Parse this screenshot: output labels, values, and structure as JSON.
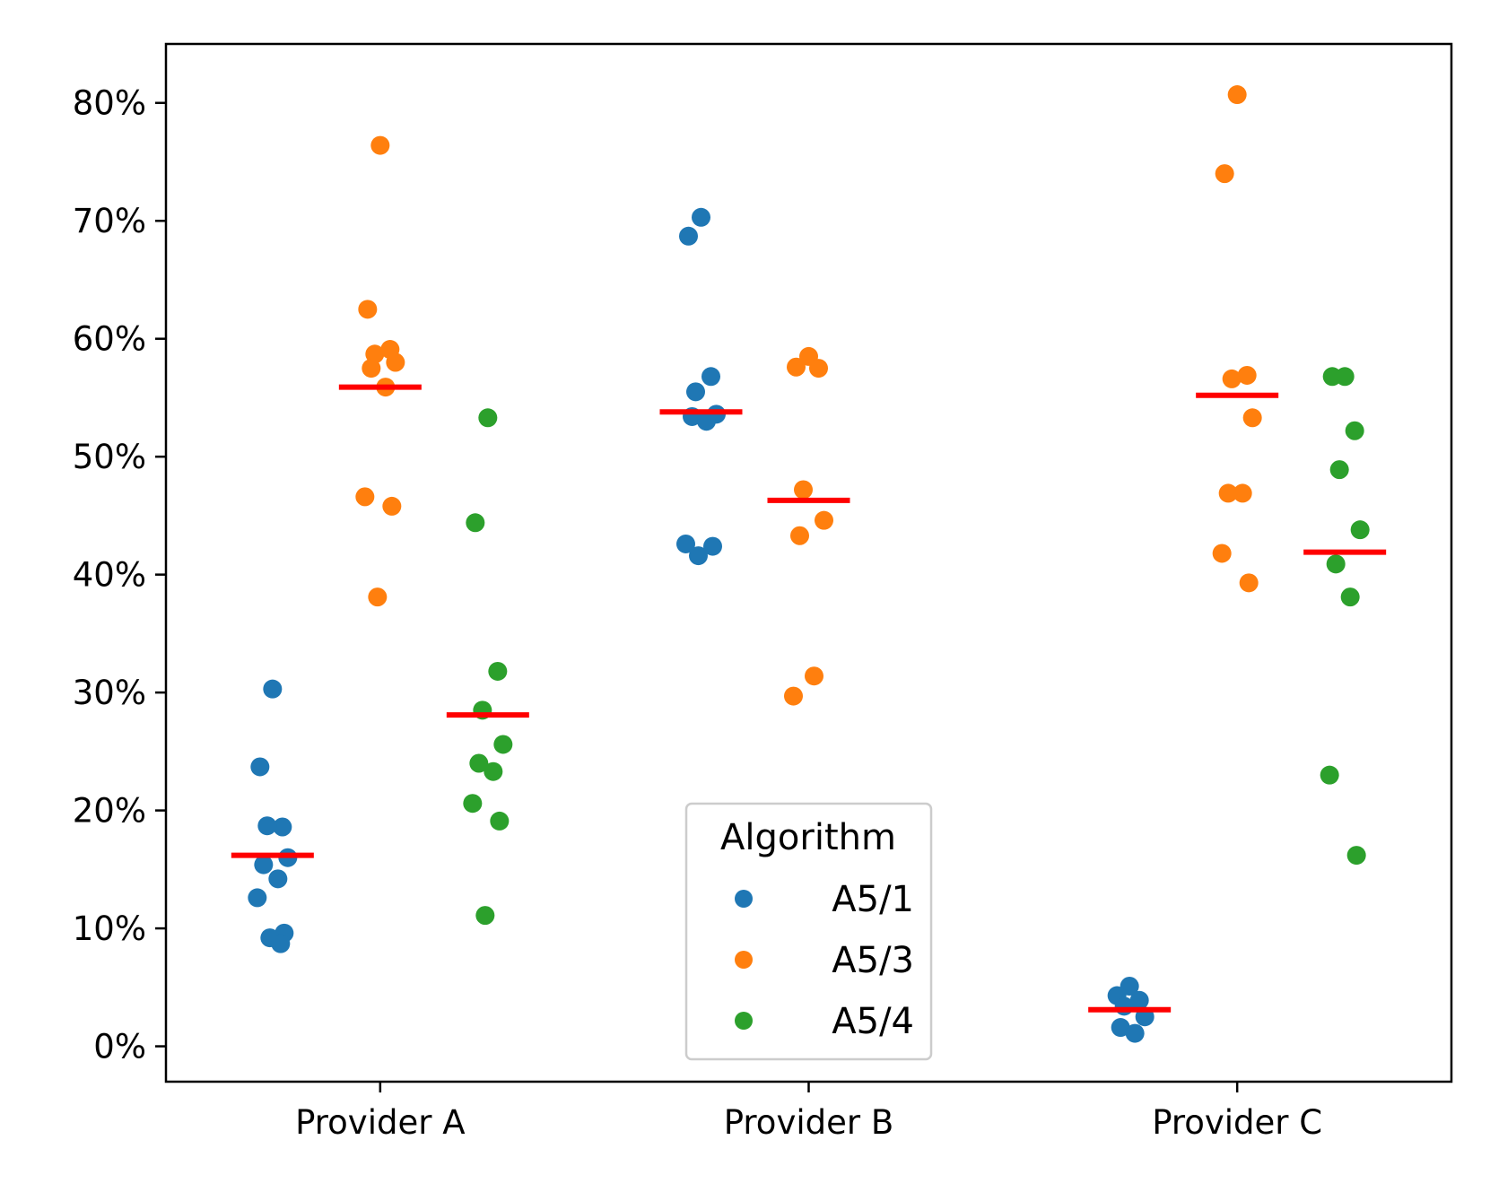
{
  "chart_data": {
    "type": "scatter",
    "subtype": "strip-plot-with-means",
    "title": "",
    "xlabel": "",
    "ylabel": "",
    "categories": [
      "Provider A",
      "Provider B",
      "Provider C"
    ],
    "ylim": [
      -3,
      85
    ],
    "yticks": [
      0,
      10,
      20,
      30,
      40,
      50,
      60,
      70,
      80
    ],
    "ytick_labels": [
      "0%",
      "10%",
      "20%",
      "30%",
      "40%",
      "50%",
      "60%",
      "70%",
      "80%"
    ],
    "legend": {
      "title": "Algorithm",
      "placement": "lower-center",
      "entries": [
        "A5/1",
        "A5/3",
        "A5/4"
      ]
    },
    "mean_color": "#ff0000",
    "series": [
      {
        "name": "A5/1",
        "color": "#1f77b4",
        "values": [
          [
            30.3,
            23.7,
            18.6,
            18.7,
            16.0,
            15.4,
            14.2,
            12.6,
            9.6,
            9.2,
            8.7
          ],
          [
            70.3,
            68.7,
            56.8,
            55.5,
            53.6,
            53.4,
            53.0,
            42.6,
            42.4,
            41.6
          ],
          [
            5.1,
            4.3,
            3.9,
            3.4,
            2.5,
            1.6,
            1.1
          ]
        ],
        "means": [
          16.2,
          53.8,
          3.1
        ]
      },
      {
        "name": "A5/3",
        "color": "#ff7f0e",
        "values": [
          [
            76.4,
            62.5,
            59.1,
            58.7,
            58.0,
            57.5,
            55.9,
            46.6,
            45.8,
            38.1
          ],
          [
            58.5,
            57.6,
            57.5,
            47.2,
            44.6,
            43.3,
            31.4,
            29.7
          ],
          [
            80.7,
            74.0,
            56.9,
            56.6,
            53.3,
            46.9,
            46.9,
            41.8,
            39.3
          ]
        ],
        "means": [
          55.9,
          46.3,
          55.2
        ]
      },
      {
        "name": "A5/4",
        "color": "#2ca02c",
        "values": [
          [
            53.3,
            44.4,
            31.8,
            28.5,
            25.6,
            24.0,
            23.3,
            20.6,
            19.1,
            11.1
          ],
          [],
          [
            56.8,
            56.8,
            52.2,
            48.9,
            43.8,
            40.9,
            38.1,
            23.0,
            16.2
          ]
        ],
        "means": [
          28.1,
          null,
          41.9
        ]
      }
    ]
  }
}
